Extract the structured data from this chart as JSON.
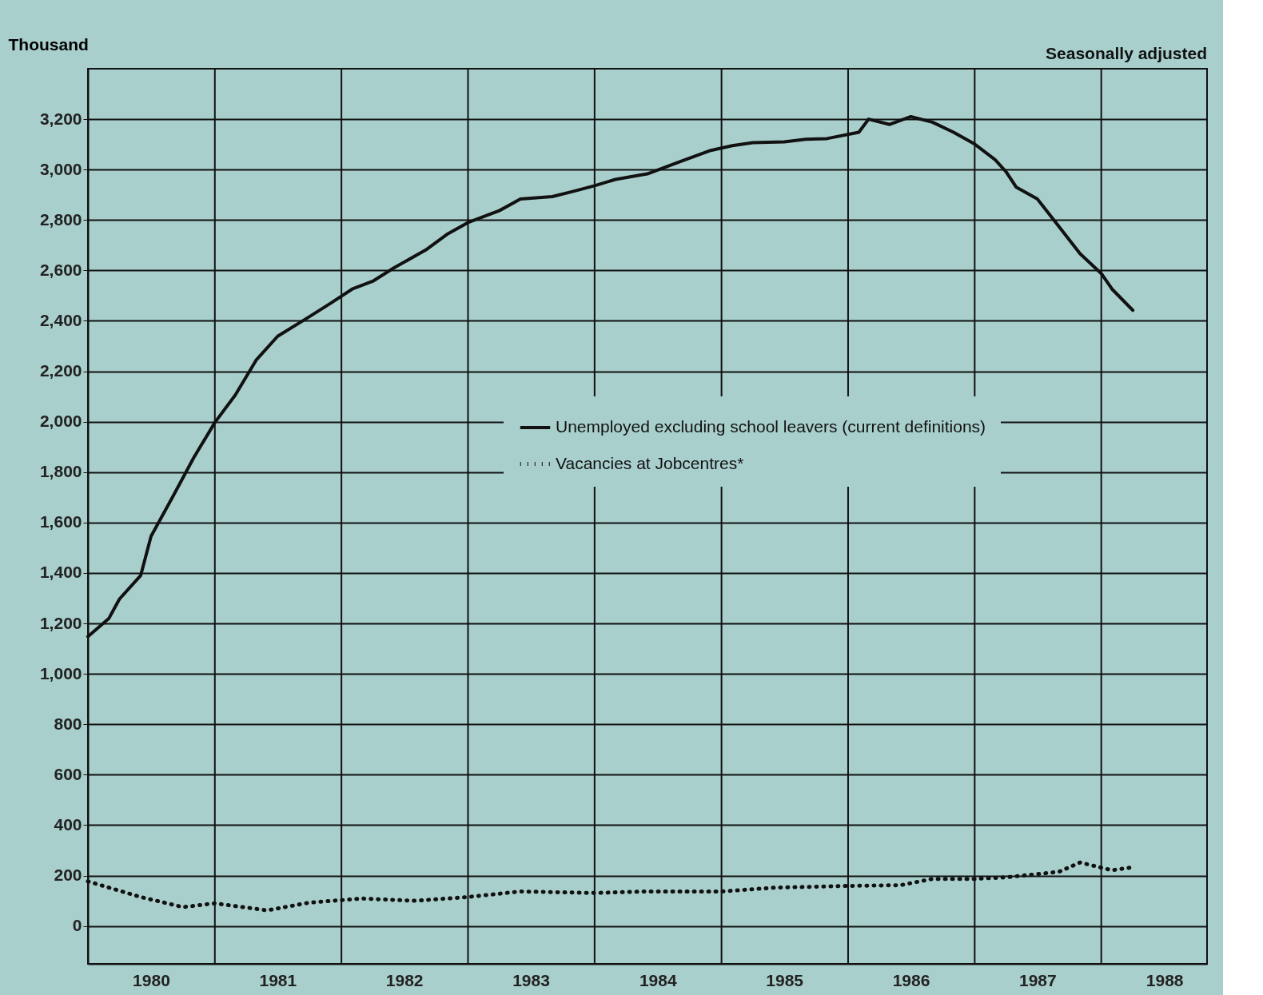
{
  "chart_data": {
    "type": "line",
    "ylabel": "Thousand",
    "annotations": [
      "Seasonally adjusted"
    ],
    "xlim": [
      "1980-01",
      "1988-11"
    ],
    "xticks": [
      {
        "value": "1980-01",
        "label": null
      },
      {
        "value": "1980-07",
        "label": "1980"
      },
      {
        "value": "1981-01",
        "label": null
      },
      {
        "value": "1981-07",
        "label": "1981"
      },
      {
        "value": "1982-01",
        "label": null
      },
      {
        "value": "1982-07",
        "label": "1982"
      },
      {
        "value": "1983-01",
        "label": null
      },
      {
        "value": "1983-07",
        "label": "1983"
      },
      {
        "value": "1984-01",
        "label": null
      },
      {
        "value": "1984-07",
        "label": "1984"
      },
      {
        "value": "1985-01",
        "label": null
      },
      {
        "value": "1985-07",
        "label": "1985"
      },
      {
        "value": "1986-01",
        "label": null
      },
      {
        "value": "1986-07",
        "label": "1986"
      },
      {
        "value": "1987-01",
        "label": null
      },
      {
        "value": "1987-07",
        "label": "1987"
      },
      {
        "value": "1988-01",
        "label": null
      },
      {
        "value": "1988-07",
        "label": "1988"
      }
    ],
    "ylim": [
      -150,
      3400
    ],
    "yticks": [
      0,
      200,
      400,
      600,
      800,
      {
        "value": 1000,
        "label": "1,000"
      },
      {
        "value": 1200,
        "label": "1,200"
      },
      {
        "value": 1400,
        "label": "1,400"
      },
      {
        "value": 1600,
        "label": "1,600"
      },
      {
        "value": 1800,
        "label": "1,800"
      },
      {
        "value": 2000,
        "label": "2,000"
      },
      {
        "value": 2200,
        "label": "2,200"
      },
      {
        "value": 2400,
        "label": "2,400"
      },
      {
        "value": 2600,
        "label": "2,600"
      },
      {
        "value": 2800,
        "label": "2,800"
      },
      {
        "value": 3000,
        "label": "3,000"
      },
      {
        "value": 3200,
        "label": "3,200"
      }
    ],
    "grid": true,
    "legend": "right",
    "series": [
      {
        "name": "Unemployed excluding school leavers (current definitions)",
        "color": "#111111",
        "line_style": "solid",
        "x": [
          "1980-01",
          "1980-03",
          "1980-04",
          "1980-06",
          "1980-07",
          "1980-09",
          "1980-11",
          "1981-01",
          "1981-03",
          "1981-05",
          "1981-07",
          "1981-10",
          "1981-12",
          "1982-02",
          "1982-04",
          "1982-06",
          "1982-09",
          "1982-11",
          "1983-01",
          "1983-04",
          "1983-06",
          "1983-09",
          "1983-11",
          "1984-01",
          "1984-03",
          "1984-06",
          "1984-09",
          "1984-12",
          "1985-02",
          "1985-04",
          "1985-07",
          "1985-09",
          "1985-11",
          "1986-02",
          "1986-03",
          "1986-05",
          "1986-07",
          "1986-09",
          "1986-11",
          "1987-01",
          "1987-03",
          "1987-04",
          "1987-05",
          "1987-07",
          "1987-09",
          "1987-11",
          "1988-01",
          "1988-02",
          "1988-04"
        ],
        "values": [
          1148,
          1219,
          1297,
          1390,
          1546,
          1701,
          1857,
          1997,
          2106,
          2246,
          2339,
          2417,
          2470,
          2526,
          2557,
          2610,
          2681,
          2743,
          2790,
          2837,
          2883,
          2893,
          2914,
          2936,
          2961,
          2983,
          3030,
          3076,
          3095,
          3107,
          3110,
          3120,
          3123,
          3148,
          3200,
          3179,
          3210,
          3188,
          3148,
          3101,
          3039,
          2992,
          2930,
          2883,
          2774,
          2666,
          2588,
          2526,
          2442
        ]
      },
      {
        "name": "Vacancies at Jobcentres*",
        "color": "#111111",
        "line_style": "dotted",
        "x": [
          "1980-01",
          "1980-06",
          "1980-10",
          "1981-01",
          "1981-06",
          "1981-10",
          "1982-03",
          "1982-08",
          "1983-01",
          "1983-06",
          "1984-01",
          "1984-06",
          "1985-01",
          "1985-06",
          "1986-01",
          "1986-06",
          "1986-09",
          "1987-01",
          "1987-04",
          "1987-09",
          "1987-11",
          "1988-02",
          "1988-04"
        ],
        "values": [
          177,
          115,
          75,
          90,
          62,
          93,
          109,
          100,
          115,
          137,
          131,
          137,
          137,
          152,
          159,
          162,
          187,
          187,
          193,
          215,
          252,
          221,
          233
        ]
      }
    ]
  }
}
